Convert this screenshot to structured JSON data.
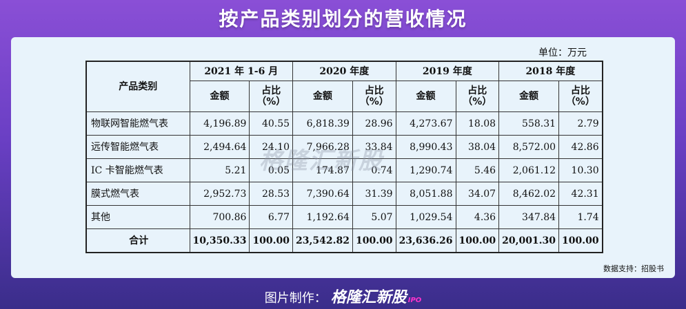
{
  "title": "按产品类别划分的营收情况",
  "unit": "单位：万元",
  "watermark": "格隆汇新股",
  "source": "数据支持：招股书",
  "footer": {
    "label": "图片制作：",
    "brand": "格隆汇新股",
    "ipo": "IPO"
  },
  "table": {
    "category_header": "产品类别",
    "periods": [
      "2021 年 1-6 月",
      "2020 年度",
      "2019 年度",
      "2018 年度"
    ],
    "amount_header": "金额",
    "ratio_header": "占比\n（%）",
    "rows": [
      {
        "name": "物联网智能燃气表",
        "cells": [
          "4,196.89",
          "40.55",
          "6,818.39",
          "28.96",
          "4,273.67",
          "18.08",
          "558.31",
          "2.79"
        ]
      },
      {
        "name": "远传智能燃气表",
        "cells": [
          "2,494.64",
          "24.10",
          "7,966.28",
          "33.84",
          "8,990.43",
          "38.04",
          "8,572.00",
          "42.86"
        ]
      },
      {
        "name": "IC 卡智能燃气表",
        "cells": [
          "5.21",
          "0.05",
          "174.87",
          "0.74",
          "1,290.74",
          "5.46",
          "2,061.12",
          "10.30"
        ]
      },
      {
        "name": "膜式燃气表",
        "cells": [
          "2,952.73",
          "28.53",
          "7,390.64",
          "31.39",
          "8,051.88",
          "34.07",
          "8,462.02",
          "42.31"
        ]
      },
      {
        "name": "其他",
        "cells": [
          "700.86",
          "6.77",
          "1,192.64",
          "5.07",
          "1,029.54",
          "4.36",
          "347.84",
          "1.74"
        ]
      }
    ],
    "total": {
      "name": "合计",
      "cells": [
        "10,350.33",
        "100.00",
        "23,542.82",
        "100.00",
        "23,636.26",
        "100.00",
        "20,001.30",
        "100.00"
      ]
    }
  }
}
